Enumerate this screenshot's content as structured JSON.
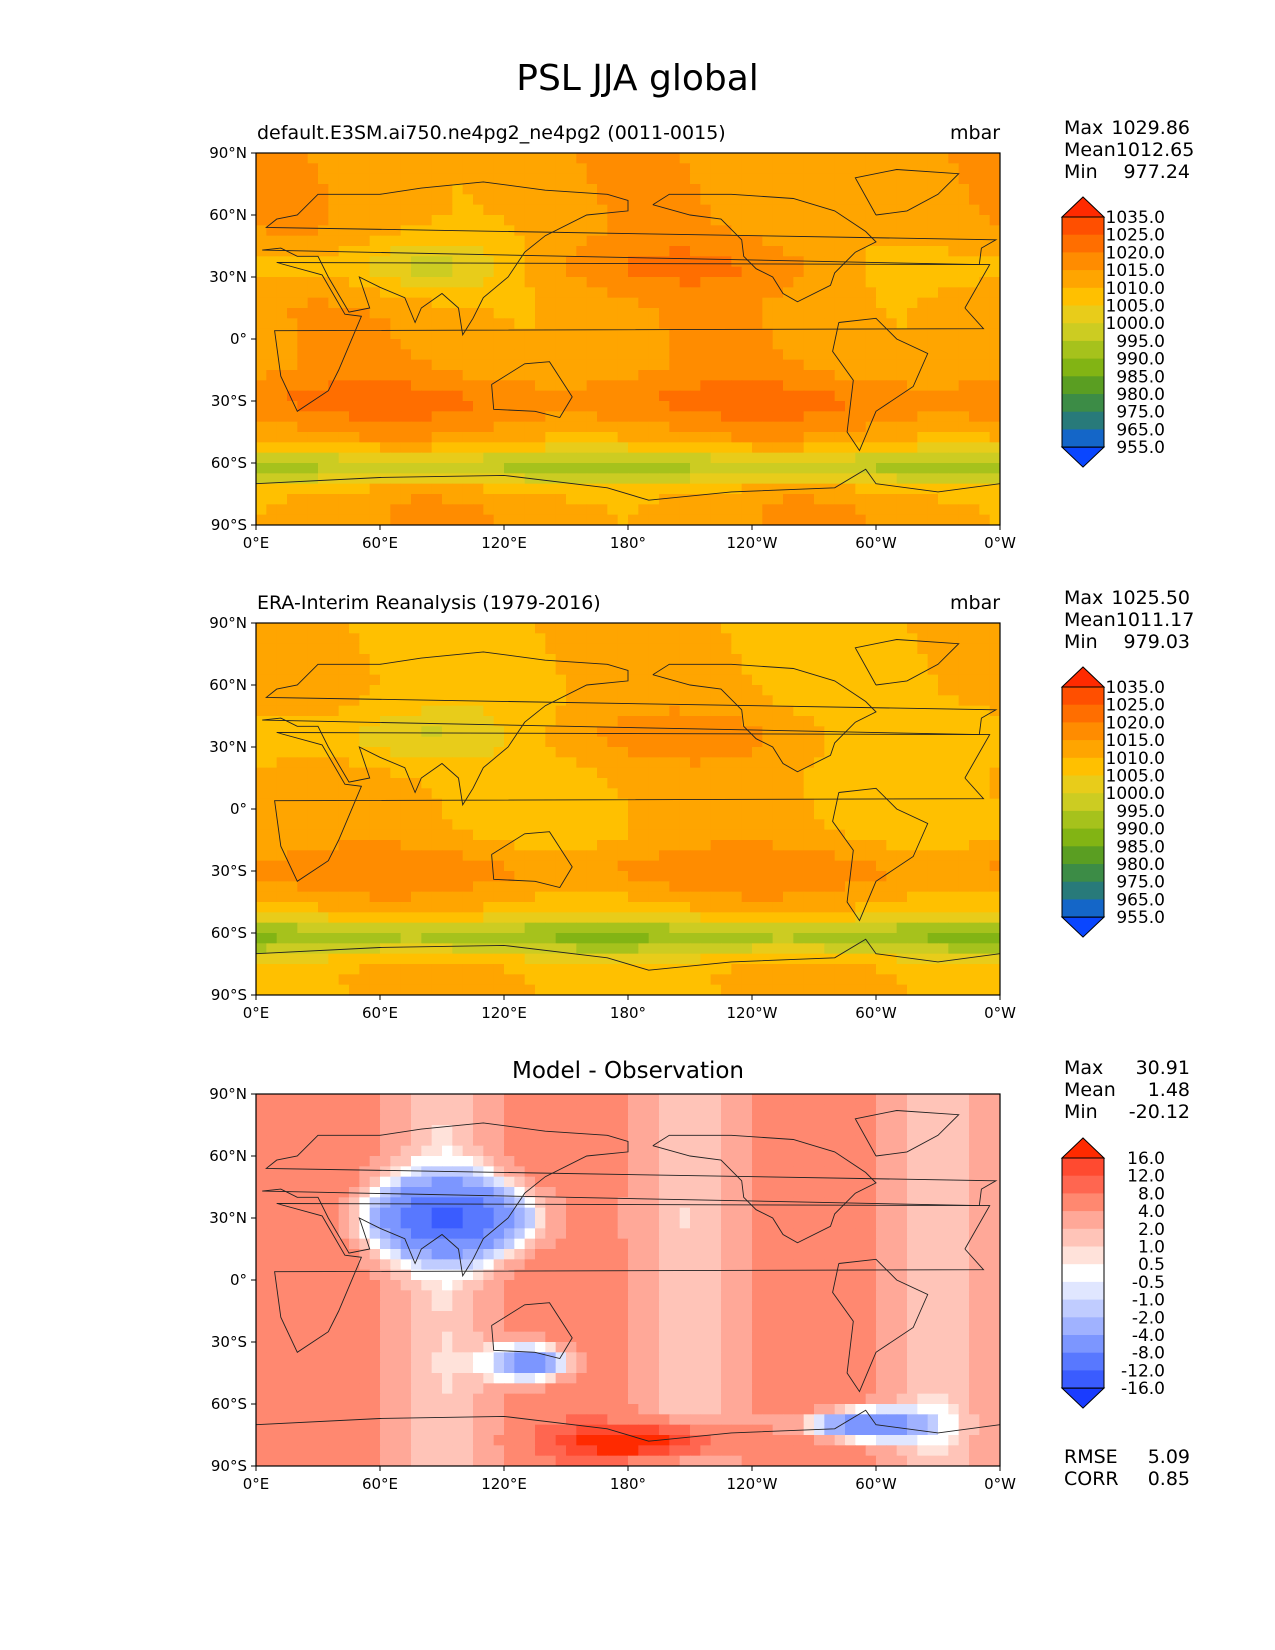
{
  "title": "PSL JJA global",
  "map_axes": {
    "lat_ticks": [
      "90°N",
      "60°N",
      "30°N",
      "0°",
      "30°S",
      "60°S",
      "90°S"
    ],
    "lon_ticks": [
      "0°E",
      "60°E",
      "120°E",
      "180°",
      "120°W",
      "60°W",
      "0°W"
    ]
  },
  "panels": [
    {
      "left_title": "default.E3SM.ai750.ne4pg2_ne4pg2 (0011-0015)",
      "center_title": "",
      "units": "mbar",
      "stats": [
        [
          "Max",
          "1029.86"
        ],
        [
          "Mean",
          "1012.65"
        ],
        [
          "Min",
          "977.24"
        ]
      ],
      "colorbar_labels": [
        "1035.0",
        "1025.0",
        "1020.0",
        "1015.0",
        "1010.0",
        "1005.0",
        "1000.0",
        "995.0",
        "990.0",
        "985.0",
        "980.0",
        "975.0",
        "965.0",
        "955.0"
      ],
      "colors": [
        "#ff2a00",
        "#ff4f00",
        "#ff6e00",
        "#ff8c00",
        "#ffa500",
        "#ffc000",
        "#e8cc1a",
        "#cccc22",
        "#a6c21c",
        "#82b414",
        "#5a9e22",
        "#3c8c46",
        "#287a7a",
        "#1466c8",
        "#0a46ff"
      ]
    },
    {
      "left_title": "ERA-Interim Reanalysis (1979-2016)",
      "center_title": "",
      "units": "mbar",
      "stats": [
        [
          "Max",
          "1025.50"
        ],
        [
          "Mean",
          "1011.17"
        ],
        [
          "Min",
          "979.03"
        ]
      ],
      "colorbar_labels": [
        "1035.0",
        "1025.0",
        "1020.0",
        "1015.0",
        "1010.0",
        "1005.0",
        "1000.0",
        "995.0",
        "990.0",
        "985.0",
        "980.0",
        "975.0",
        "965.0",
        "955.0"
      ],
      "colors": [
        "#ff2a00",
        "#ff4f00",
        "#ff6e00",
        "#ff8c00",
        "#ffa500",
        "#ffc000",
        "#e8cc1a",
        "#cccc22",
        "#a6c21c",
        "#82b414",
        "#5a9e22",
        "#3c8c46",
        "#287a7a",
        "#1466c8",
        "#0a46ff"
      ]
    },
    {
      "left_title": "",
      "center_title": "Model - Observation",
      "units": "",
      "stats": [
        [
          "Max",
          "30.91"
        ],
        [
          "Mean",
          "1.48"
        ],
        [
          "Min",
          "-20.12"
        ]
      ],
      "colorbar_labels": [
        "16.0",
        "12.0",
        "8.0",
        "4.0",
        "2.0",
        "1.0",
        "0.5",
        "-0.5",
        "-1.0",
        "-2.0",
        "-4.0",
        "-8.0",
        "-12.0",
        "-16.0"
      ],
      "colors": [
        "#ff2a00",
        "#ff4a30",
        "#ff6650",
        "#ff8870",
        "#ffa898",
        "#ffc4b8",
        "#ffe2da",
        "#ffffff",
        "#e0e6ff",
        "#c0ccff",
        "#a0b2ff",
        "#7c96ff",
        "#5878ff",
        "#3a5cff",
        "#1a3cff"
      ],
      "extra_stats": [
        [
          "RMSE",
          "5.09"
        ],
        [
          "CORR",
          "0.85"
        ]
      ]
    }
  ]
}
